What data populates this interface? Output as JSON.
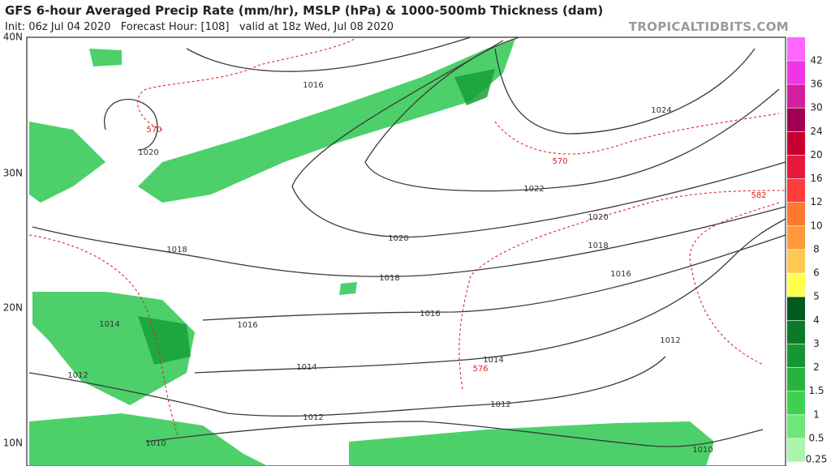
{
  "header": {
    "title": "GFS 6-hour Averaged Precip Rate (mm/hr), MSLP (hPa) & 1000-500mb Thickness (dam)",
    "subtitle": "Init: 06z Jul 04 2020   Forecast Hour: [108]   valid at 18z Wed, Jul 08 2020",
    "source": "TROPICALTIDBITS.COM"
  },
  "map": {
    "latitude_labels": [
      "40N",
      "30N",
      "20N",
      "10N"
    ],
    "isobar_labels": [
      "1016",
      "1020",
      "1024",
      "1022",
      "1020",
      "1020",
      "1018",
      "1018",
      "1018",
      "1016",
      "1016",
      "1016",
      "1014",
      "1014",
      "1014",
      "1012",
      "1012",
      "1012",
      "1012",
      "1010",
      "1010"
    ],
    "thickness_labels": [
      "570",
      "570",
      "582",
      "576"
    ]
  },
  "colorbar": {
    "labels": [
      "42",
      "36",
      "30",
      "24",
      "20",
      "16",
      "12",
      "10",
      "8",
      "6",
      "5",
      "4",
      "3",
      "2",
      "1.5",
      "1",
      "0.5",
      "0.25"
    ],
    "colors": [
      "#ff66ff",
      "#f035e6",
      "#d21ea0",
      "#a0004f",
      "#c80032",
      "#e6193c",
      "#ff3c3c",
      "#ff7832",
      "#ff9a3c",
      "#ffc850",
      "#ffff50",
      "#005a1e",
      "#0a7a28",
      "#169632",
      "#28b43c",
      "#3cd250",
      "#6ee678",
      "#aaf5aa"
    ]
  }
}
